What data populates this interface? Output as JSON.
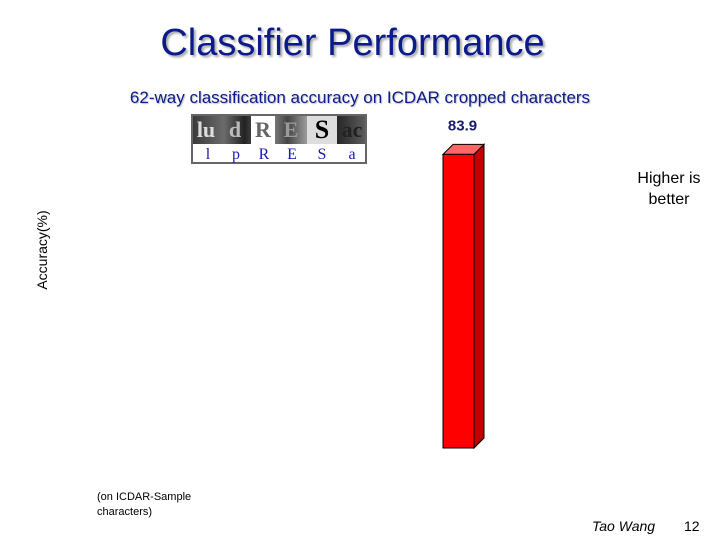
{
  "slide": {
    "title": "Classifier Performance",
    "subtitle": "62-way classification accuracy on ICDAR cropped characters",
    "note": "Higher is better",
    "x_note": "(on ICDAR-Sample characters)",
    "author": "Tao Wang",
    "page_number": "12"
  },
  "sample_strip": {
    "glyphs": [
      "lu",
      "d",
      "R",
      "E",
      "S",
      "ac"
    ],
    "labels": [
      "l",
      "p",
      "R",
      "E",
      "S",
      "a"
    ]
  },
  "chart_data": {
    "type": "bar",
    "categories": [
      ""
    ],
    "values": [
      83.9
    ],
    "value_labels": [
      "83.9"
    ],
    "ylabel": "Accuracy(%)",
    "ylim": [
      0,
      100
    ],
    "bar_color": "#ff0000",
    "bar_side_color": "#c00000",
    "bar_top_color": "#ff6666",
    "label_color": "#1a1a6e",
    "three_d": true
  }
}
